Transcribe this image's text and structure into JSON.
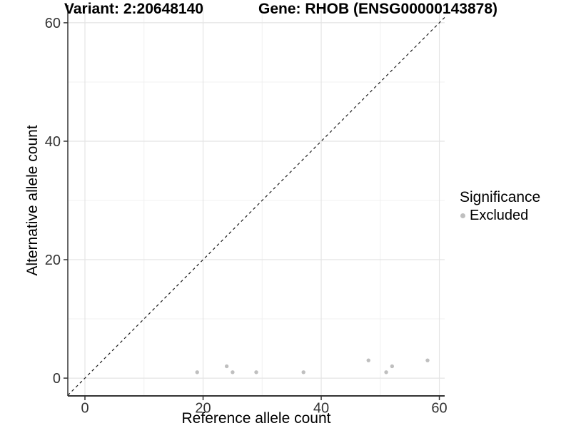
{
  "header": {
    "variant_title": "Variant: 2:20648140",
    "gene_title": "Gene: RHOB (ENSG00000143878)"
  },
  "legend": {
    "title": "Significance",
    "items": [
      {
        "label": "Excluded",
        "color": "#bfbfbf"
      }
    ]
  },
  "chart_data": {
    "type": "scatter",
    "xlabel": "Reference allele count",
    "ylabel": "Alternative allele count",
    "x_domain": [
      -2.9,
      60.9
    ],
    "y_domain": [
      -3,
      63
    ],
    "x_breaks": [
      0,
      20,
      40,
      60
    ],
    "y_breaks": [
      0,
      20,
      40,
      60
    ],
    "x_minor_breaks": [
      10,
      30,
      50
    ],
    "y_minor_breaks": [
      10,
      30,
      50
    ],
    "identity_line": {
      "style": "dashed",
      "slope": 1,
      "intercept": 0
    },
    "series": [
      {
        "name": "Excluded",
        "color": "#bfbfbf",
        "points": [
          [
            19,
            1
          ],
          [
            24,
            2
          ],
          [
            25,
            1
          ],
          [
            29,
            1
          ],
          [
            37,
            1
          ],
          [
            48,
            3
          ],
          [
            51,
            1
          ],
          [
            52,
            2
          ],
          [
            58,
            3
          ]
        ]
      }
    ],
    "colors": {
      "grid_major": "#e4e4e4",
      "grid_minor": "#f0f0f0",
      "axis_line": "#333333",
      "tick": "#333333",
      "tick_label": "#333333",
      "axis_title": "#000000",
      "identity_line": "#1a1a1a",
      "background": "#ffffff"
    }
  }
}
